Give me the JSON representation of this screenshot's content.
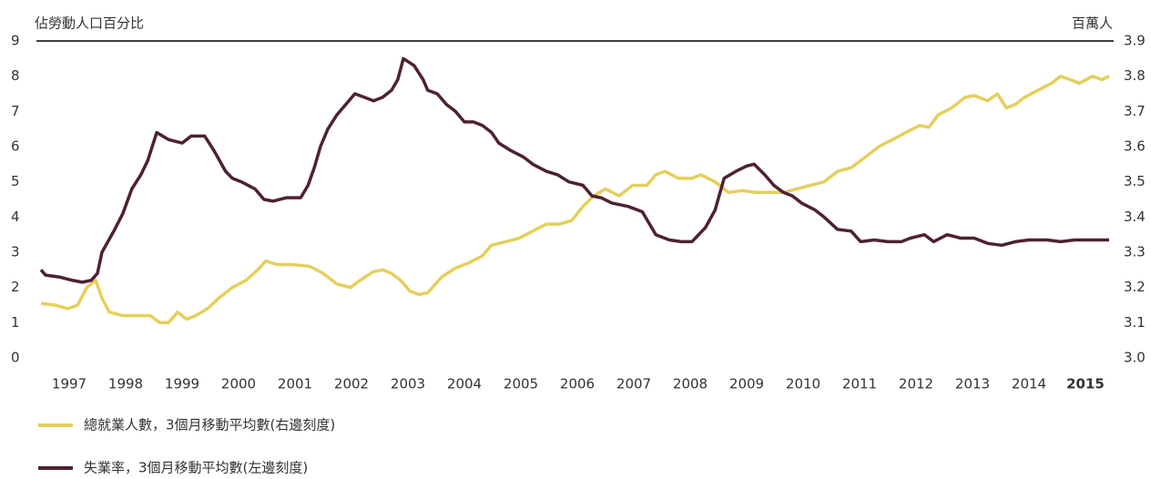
{
  "chart_data": {
    "type": "line",
    "y_axis_label": "佔勞動人口百分比",
    "y2_axis_label": "百萬人",
    "xlim": [
      1997,
      2016
    ],
    "xticks": [
      {
        "value": 1997.5,
        "label": "1997"
      },
      {
        "value": 1998.5,
        "label": "1998"
      },
      {
        "value": 1999.5,
        "label": "1999"
      },
      {
        "value": 2000.5,
        "label": "2000"
      },
      {
        "value": 2001.5,
        "label": "2001"
      },
      {
        "value": 2002.5,
        "label": "2002"
      },
      {
        "value": 2003.5,
        "label": "2003"
      },
      {
        "value": 2004.5,
        "label": "2004"
      },
      {
        "value": 2005.5,
        "label": "2005"
      },
      {
        "value": 2006.5,
        "label": "2006"
      },
      {
        "value": 2007.5,
        "label": "2007"
      },
      {
        "value": 2008.5,
        "label": "2008"
      },
      {
        "value": 2009.5,
        "label": "2009"
      },
      {
        "value": 2010.5,
        "label": "2010"
      },
      {
        "value": 2011.5,
        "label": "2011"
      },
      {
        "value": 2012.5,
        "label": "2012"
      },
      {
        "value": 2013.5,
        "label": "2013"
      },
      {
        "value": 2014.5,
        "label": "2014"
      },
      {
        "value": 2015.5,
        "label": "2015"
      }
    ],
    "ylim": [
      0,
      9
    ],
    "yticks": [
      0,
      1,
      2,
      3,
      4,
      5,
      6,
      7,
      8,
      9
    ],
    "y2lim": [
      3.0,
      3.9
    ],
    "y2ticks": [
      {
        "value": 3.0,
        "label": "3.0"
      },
      3.1,
      3.2,
      3.3,
      3.4,
      3.5,
      3.6,
      3.7,
      3.8,
      3.9
    ],
    "series": [
      {
        "name": "總就業人數，3個月移動平均數(右邊刻度)",
        "color": "#e5cf5c",
        "axis": "y2",
        "x": [
          1997.0,
          1997.24,
          1997.48,
          1997.65,
          1997.81,
          1997.97,
          1998.08,
          1998.21,
          1998.45,
          1998.69,
          1998.94,
          1999.1,
          1999.26,
          1999.42,
          1999.58,
          1999.74,
          1999.95,
          2000.15,
          2000.39,
          2000.63,
          2000.84,
          2000.98,
          2001.19,
          2001.44,
          2001.76,
          2002.0,
          2002.24,
          2002.48,
          2002.65,
          2002.89,
          2003.05,
          2003.21,
          2003.37,
          2003.53,
          2003.69,
          2003.85,
          2004.1,
          2004.34,
          2004.58,
          2004.82,
          2004.98,
          2005.23,
          2005.47,
          2005.71,
          2005.95,
          2006.19,
          2006.4,
          2006.6,
          2006.79,
          2007.0,
          2007.24,
          2007.48,
          2007.73,
          2007.89,
          2008.05,
          2008.29,
          2008.53,
          2008.69,
          2008.94,
          2009.18,
          2009.42,
          2009.66,
          2009.9,
          2010.15,
          2010.39,
          2010.63,
          2010.87,
          2011.11,
          2011.35,
          2011.6,
          2011.84,
          2012.08,
          2012.32,
          2012.56,
          2012.73,
          2012.89,
          2013.13,
          2013.37,
          2013.53,
          2013.77,
          2013.94,
          2014.1,
          2014.26,
          2014.42,
          2014.66,
          2014.9,
          2015.06,
          2015.23,
          2015.39,
          2015.63,
          2015.79,
          2015.92
        ],
        "values": [
          3.155,
          3.15,
          3.14,
          3.15,
          3.2,
          3.22,
          3.17,
          3.13,
          3.12,
          3.12,
          3.12,
          3.1,
          3.1,
          3.13,
          3.11,
          3.12,
          3.14,
          3.17,
          3.2,
          3.22,
          3.25,
          3.275,
          3.265,
          3.265,
          3.26,
          3.24,
          3.21,
          3.2,
          3.22,
          3.245,
          3.25,
          3.24,
          3.22,
          3.19,
          3.18,
          3.185,
          3.23,
          3.255,
          3.27,
          3.29,
          3.32,
          3.33,
          3.34,
          3.36,
          3.38,
          3.38,
          3.39,
          3.43,
          3.46,
          3.48,
          3.46,
          3.49,
          3.49,
          3.52,
          3.53,
          3.51,
          3.51,
          3.52,
          3.5,
          3.47,
          3.475,
          3.47,
          3.47,
          3.47,
          3.48,
          3.49,
          3.5,
          3.53,
          3.54,
          3.57,
          3.6,
          3.62,
          3.64,
          3.66,
          3.655,
          3.69,
          3.71,
          3.74,
          3.745,
          3.73,
          3.75,
          3.71,
          3.72,
          3.74,
          3.76,
          3.78,
          3.8,
          3.79,
          3.78,
          3.8,
          3.79,
          3.8
        ]
      },
      {
        "name": "失業率，3個月移動平均數(左邊刻度)",
        "color": "#4e2230",
        "x": [
          1997.0,
          1997.08,
          1997.32,
          1997.56,
          1997.73,
          1997.89,
          1998.0,
          1998.08,
          1998.29,
          1998.45,
          1998.61,
          1998.77,
          1998.89,
          1999.05,
          1999.26,
          1999.5,
          1999.66,
          1999.9,
          2000.06,
          2000.27,
          2000.39,
          2000.55,
          2000.79,
          2000.95,
          2001.11,
          2001.35,
          2001.6,
          2001.73,
          2001.84,
          2001.95,
          2002.08,
          2002.24,
          2002.4,
          2002.56,
          2002.73,
          2002.89,
          2003.05,
          2003.21,
          2003.32,
          2003.42,
          2003.61,
          2003.77,
          2003.85,
          2004.02,
          2004.18,
          2004.34,
          2004.5,
          2004.66,
          2004.82,
          2004.98,
          2005.11,
          2005.31,
          2005.55,
          2005.71,
          2005.95,
          2006.15,
          2006.35,
          2006.6,
          2006.76,
          2006.92,
          2007.11,
          2007.4,
          2007.65,
          2007.89,
          2008.13,
          2008.34,
          2008.53,
          2008.77,
          2008.94,
          2009.1,
          2009.31,
          2009.5,
          2009.63,
          2009.82,
          2009.98,
          2010.15,
          2010.31,
          2010.47,
          2010.71,
          2010.87,
          2011.11,
          2011.35,
          2011.52,
          2011.76,
          2012.0,
          2012.24,
          2012.4,
          2012.65,
          2012.81,
          2013.05,
          2013.29,
          2013.53,
          2013.77,
          2014.02,
          2014.26,
          2014.5,
          2014.82,
          2015.06,
          2015.31,
          2015.92
        ],
        "values": [
          2.5,
          2.35,
          2.3,
          2.2,
          2.15,
          2.2,
          2.4,
          3.0,
          3.6,
          4.1,
          4.8,
          5.2,
          5.6,
          6.4,
          6.2,
          6.1,
          6.3,
          6.3,
          5.9,
          5.3,
          5.1,
          5.0,
          4.8,
          4.5,
          4.45,
          4.55,
          4.55,
          4.9,
          5.4,
          6.0,
          6.5,
          6.9,
          7.2,
          7.5,
          7.4,
          7.3,
          7.4,
          7.6,
          7.9,
          8.5,
          8.3,
          7.9,
          7.6,
          7.5,
          7.2,
          7.0,
          6.7,
          6.7,
          6.6,
          6.4,
          6.1,
          5.9,
          5.7,
          5.5,
          5.3,
          5.2,
          5.0,
          4.9,
          4.6,
          4.55,
          4.4,
          4.3,
          4.15,
          3.5,
          3.35,
          3.3,
          3.3,
          3.7,
          4.2,
          5.1,
          5.3,
          5.45,
          5.5,
          5.2,
          4.9,
          4.7,
          4.6,
          4.4,
          4.2,
          4.0,
          3.65,
          3.6,
          3.3,
          3.35,
          3.3,
          3.3,
          3.4,
          3.5,
          3.3,
          3.5,
          3.4,
          3.4,
          3.25,
          3.2,
          3.3,
          3.35,
          3.35,
          3.3,
          3.35,
          3.35
        ]
      }
    ]
  }
}
